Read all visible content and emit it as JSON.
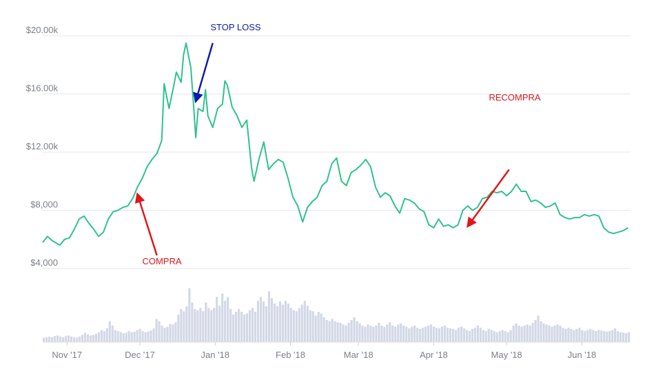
{
  "chart_data": {
    "type": "line",
    "title": "",
    "xlabel": "",
    "ylabel": "",
    "ylim": [
      2000,
      20500
    ],
    "grid": true,
    "y_ticks": [
      {
        "value": 20000,
        "label": "$20.00k"
      },
      {
        "value": 16000,
        "label": "$16.00k"
      },
      {
        "value": 12000,
        "label": "$12.00k"
      },
      {
        "value": 8000,
        "label": "$8,000"
      },
      {
        "value": 4000,
        "label": "$4,000"
      }
    ],
    "x_ticks": [
      {
        "date": "2017-11-01",
        "label": "Nov '17"
      },
      {
        "date": "2017-12-01",
        "label": "Dec '17"
      },
      {
        "date": "2018-01-01",
        "label": "Jan '18"
      },
      {
        "date": "2018-02-01",
        "label": "Feb '18"
      },
      {
        "date": "2018-03-01",
        "label": "Mar '18"
      },
      {
        "date": "2018-04-01",
        "label": "Apr '18"
      },
      {
        "date": "2018-05-01",
        "label": "May '18"
      },
      {
        "date": "2018-06-01",
        "label": "Jun '18"
      }
    ],
    "series": [
      {
        "color": "#2ec28a",
        "points": [
          [
            "2017-10-22",
            5800
          ],
          [
            "2017-10-24",
            6200
          ],
          [
            "2017-10-26",
            5900
          ],
          [
            "2017-10-29",
            5600
          ],
          [
            "2017-10-31",
            6000
          ],
          [
            "2017-11-02",
            6100
          ],
          [
            "2017-11-04",
            6700
          ],
          [
            "2017-11-06",
            7400
          ],
          [
            "2017-11-08",
            7600
          ],
          [
            "2017-11-10",
            7100
          ],
          [
            "2017-11-12",
            6700
          ],
          [
            "2017-11-14",
            6200
          ],
          [
            "2017-11-16",
            6500
          ],
          [
            "2017-11-18",
            7400
          ],
          [
            "2017-11-20",
            7900
          ],
          [
            "2017-11-22",
            8000
          ],
          [
            "2017-11-24",
            8200
          ],
          [
            "2017-11-26",
            8300
          ],
          [
            "2017-11-28",
            8800
          ],
          [
            "2017-11-30",
            9600
          ],
          [
            "2017-12-02",
            10200
          ],
          [
            "2017-12-04",
            11000
          ],
          [
            "2017-12-06",
            11500
          ],
          [
            "2017-12-08",
            11900
          ],
          [
            "2017-12-10",
            12800
          ],
          [
            "2017-12-11",
            16700
          ],
          [
            "2017-12-13",
            15000
          ],
          [
            "2017-12-15",
            16600
          ],
          [
            "2017-12-16",
            17500
          ],
          [
            "2017-12-18",
            16800
          ],
          [
            "2017-12-19",
            18700
          ],
          [
            "2017-12-20",
            19500
          ],
          [
            "2017-12-22",
            17800
          ],
          [
            "2017-12-23",
            15500
          ],
          [
            "2017-12-24",
            13000
          ],
          [
            "2017-12-25",
            15000
          ],
          [
            "2017-12-27",
            14800
          ],
          [
            "2017-12-28",
            16300
          ],
          [
            "2017-12-29",
            14500
          ],
          [
            "2017-12-31",
            13700
          ],
          [
            "2018-01-02",
            15000
          ],
          [
            "2018-01-04",
            15300
          ],
          [
            "2018-01-05",
            16900
          ],
          [
            "2018-01-06",
            16600
          ],
          [
            "2018-01-08",
            15100
          ],
          [
            "2018-01-10",
            14500
          ],
          [
            "2018-01-12",
            13700
          ],
          [
            "2018-01-14",
            14200
          ],
          [
            "2018-01-16",
            10900
          ],
          [
            "2018-01-17",
            10000
          ],
          [
            "2018-01-19",
            11500
          ],
          [
            "2018-01-21",
            12700
          ],
          [
            "2018-01-23",
            10800
          ],
          [
            "2018-01-25",
            11200
          ],
          [
            "2018-01-27",
            11500
          ],
          [
            "2018-01-29",
            11300
          ],
          [
            "2018-01-31",
            10200
          ],
          [
            "2018-02-02",
            8900
          ],
          [
            "2018-02-04",
            8300
          ],
          [
            "2018-02-06",
            7200
          ],
          [
            "2018-02-08",
            8200
          ],
          [
            "2018-02-10",
            8600
          ],
          [
            "2018-02-12",
            8900
          ],
          [
            "2018-02-14",
            9700
          ],
          [
            "2018-02-16",
            10000
          ],
          [
            "2018-02-18",
            11200
          ],
          [
            "2018-02-20",
            11600
          ],
          [
            "2018-02-22",
            10000
          ],
          [
            "2018-02-24",
            9700
          ],
          [
            "2018-02-26",
            10600
          ],
          [
            "2018-02-28",
            10800
          ],
          [
            "2018-03-02",
            11100
          ],
          [
            "2018-03-04",
            11500
          ],
          [
            "2018-03-06",
            11000
          ],
          [
            "2018-03-08",
            9600
          ],
          [
            "2018-03-10",
            8900
          ],
          [
            "2018-03-12",
            9200
          ],
          [
            "2018-03-14",
            9000
          ],
          [
            "2018-03-16",
            8300
          ],
          [
            "2018-03-18",
            7800
          ],
          [
            "2018-03-20",
            8800
          ],
          [
            "2018-03-22",
            8700
          ],
          [
            "2018-03-24",
            8500
          ],
          [
            "2018-03-26",
            8100
          ],
          [
            "2018-03-28",
            7900
          ],
          [
            "2018-03-30",
            7000
          ],
          [
            "2018-04-01",
            6800
          ],
          [
            "2018-04-03",
            7400
          ],
          [
            "2018-04-05",
            6900
          ],
          [
            "2018-04-07",
            7000
          ],
          [
            "2018-04-09",
            6800
          ],
          [
            "2018-04-11",
            7000
          ],
          [
            "2018-04-13",
            8000
          ],
          [
            "2018-04-15",
            8300
          ],
          [
            "2018-04-17",
            8000
          ],
          [
            "2018-04-19",
            8200
          ],
          [
            "2018-04-21",
            8800
          ],
          [
            "2018-04-23",
            8900
          ],
          [
            "2018-04-25",
            9300
          ],
          [
            "2018-04-27",
            9200
          ],
          [
            "2018-04-29",
            9300
          ],
          [
            "2018-05-01",
            9000
          ],
          [
            "2018-05-03",
            9300
          ],
          [
            "2018-05-05",
            9800
          ],
          [
            "2018-05-07",
            9300
          ],
          [
            "2018-05-09",
            9300
          ],
          [
            "2018-05-11",
            8600
          ],
          [
            "2018-05-13",
            8700
          ],
          [
            "2018-05-15",
            8500
          ],
          [
            "2018-05-17",
            8200
          ],
          [
            "2018-05-19",
            8300
          ],
          [
            "2018-05-21",
            8500
          ],
          [
            "2018-05-23",
            7700
          ],
          [
            "2018-05-25",
            7500
          ],
          [
            "2018-05-27",
            7400
          ],
          [
            "2018-05-29",
            7500
          ],
          [
            "2018-05-31",
            7500
          ],
          [
            "2018-06-02",
            7700
          ],
          [
            "2018-06-04",
            7600
          ],
          [
            "2018-06-06",
            7700
          ],
          [
            "2018-06-08",
            7600
          ],
          [
            "2018-06-10",
            6800
          ],
          [
            "2018-06-12",
            6500
          ],
          [
            "2018-06-14",
            6400
          ],
          [
            "2018-06-16",
            6500
          ],
          [
            "2018-06-18",
            6600
          ],
          [
            "2018-06-20",
            6800
          ]
        ]
      }
    ],
    "volume": {
      "color": "#d3d8e6",
      "relative_values": [
        0.08,
        0.09,
        0.1,
        0.09,
        0.11,
        0.12,
        0.1,
        0.09,
        0.11,
        0.12,
        0.1,
        0.09,
        0.08,
        0.1,
        0.13,
        0.17,
        0.14,
        0.12,
        0.13,
        0.15,
        0.18,
        0.22,
        0.2,
        0.25,
        0.38,
        0.3,
        0.22,
        0.2,
        0.18,
        0.16,
        0.17,
        0.2,
        0.18,
        0.19,
        0.22,
        0.24,
        0.2,
        0.18,
        0.19,
        0.21,
        0.25,
        0.42,
        0.38,
        0.3,
        0.26,
        0.28,
        0.33,
        0.32,
        0.36,
        0.5,
        0.6,
        0.56,
        0.65,
        0.98,
        0.72,
        0.6,
        0.58,
        0.62,
        0.56,
        0.72,
        0.62,
        0.58,
        0.62,
        0.82,
        0.66,
        0.88,
        0.75,
        0.82,
        0.6,
        0.5,
        0.55,
        0.6,
        0.55,
        0.5,
        0.52,
        0.58,
        0.62,
        0.55,
        0.75,
        0.82,
        0.74,
        0.65,
        0.92,
        0.8,
        0.7,
        0.65,
        0.74,
        0.68,
        0.75,
        0.7,
        0.62,
        0.58,
        0.56,
        0.62,
        0.68,
        0.75,
        0.66,
        0.58,
        0.56,
        0.48,
        0.55,
        0.52,
        0.45,
        0.4,
        0.38,
        0.42,
        0.38,
        0.36,
        0.35,
        0.32,
        0.3,
        0.35,
        0.4,
        0.45,
        0.38,
        0.34,
        0.3,
        0.28,
        0.32,
        0.3,
        0.28,
        0.3,
        0.35,
        0.3,
        0.28,
        0.32,
        0.36,
        0.3,
        0.28,
        0.32,
        0.34,
        0.3,
        0.28,
        0.25,
        0.28,
        0.3,
        0.26,
        0.24,
        0.26,
        0.28,
        0.3,
        0.32,
        0.28,
        0.26,
        0.25,
        0.28,
        0.3,
        0.26,
        0.25,
        0.24,
        0.22,
        0.26,
        0.28,
        0.25,
        0.22,
        0.2,
        0.24,
        0.26,
        0.3,
        0.26,
        0.22,
        0.2,
        0.24,
        0.22,
        0.2,
        0.18,
        0.2,
        0.22,
        0.2,
        0.18,
        0.22,
        0.3,
        0.34,
        0.3,
        0.28,
        0.3,
        0.32,
        0.3,
        0.35,
        0.4,
        0.48,
        0.38,
        0.34,
        0.32,
        0.3,
        0.28,
        0.3,
        0.32,
        0.3,
        0.26,
        0.24,
        0.26,
        0.24,
        0.22,
        0.24,
        0.26,
        0.22,
        0.2,
        0.22,
        0.24,
        0.22,
        0.2,
        0.22,
        0.21,
        0.2,
        0.19,
        0.2,
        0.22,
        0.25,
        0.2,
        0.18,
        0.17,
        0.16,
        0.18
      ]
    },
    "annotations": [
      {
        "text": "STOP LOSS",
        "color": "#0b1ca8",
        "arrow_from": [
          "2017-12-31",
          19500
        ],
        "arrow_to": [
          "2017-12-24",
          15500
        ]
      },
      {
        "text": "COMPRA",
        "color": "#e0161b",
        "arrow_from": [
          "2017-12-08",
          4900
        ],
        "arrow_to": [
          "2017-11-30",
          9100
        ]
      },
      {
        "text": "RECOMPRA",
        "color": "#e0161b",
        "arrow_from": [
          "2018-05-02",
          10800
        ],
        "arrow_to": [
          "2018-04-15",
          6900
        ]
      }
    ]
  }
}
